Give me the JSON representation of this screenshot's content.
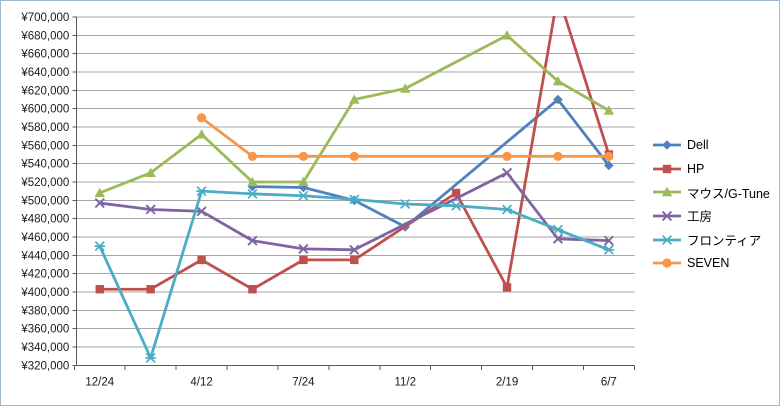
{
  "chart_data": {
    "type": "line",
    "title": "",
    "categories": [
      "12/24",
      "",
      "4/12",
      "",
      "7/24",
      "",
      "11/2",
      "",
      "2/19",
      "",
      "6/7"
    ],
    "x_axis": {
      "tick_labels": [
        "12/24",
        "4/12",
        "7/24",
        "11/2",
        "2/19",
        "6/7"
      ],
      "label_every": 2
    },
    "y_axis": {
      "min": 320000,
      "max": 700000,
      "step": 20000,
      "tick_labels": [
        "¥320,000",
        "¥340,000",
        "¥360,000",
        "¥380,000",
        "¥400,000",
        "¥420,000",
        "¥440,000",
        "¥460,000",
        "¥480,000",
        "¥500,000",
        "¥520,000",
        "¥540,000",
        "¥560,000",
        "¥580,000",
        "¥600,000",
        "¥620,000",
        "¥640,000",
        "¥660,000",
        "¥680,000",
        "¥700,000"
      ]
    },
    "ylim": [
      320000,
      700000
    ],
    "grid": true,
    "legend": {
      "position": "right"
    },
    "series": [
      {
        "name": "Dell",
        "color": "#4F81BD",
        "marker": "diamond",
        "values": [
          null,
          null,
          null,
          515000,
          514000,
          500000,
          471000,
          null,
          null,
          610000,
          538000
        ]
      },
      {
        "name": "HP",
        "color": "#C0504D",
        "marker": "square",
        "values": [
          403000,
          403000,
          435000,
          403000,
          435000,
          435000,
          null,
          508000,
          405000,
          725000,
          550000
        ]
      },
      {
        "name": "マウス/G-Tune",
        "color": "#9BBB59",
        "marker": "triangle",
        "values": [
          508000,
          530000,
          572000,
          520000,
          520000,
          610000,
          622000,
          null,
          680000,
          630000,
          598000
        ]
      },
      {
        "name": "工房",
        "color": "#8064A2",
        "marker": "x",
        "values": [
          497000,
          490000,
          488000,
          456000,
          447000,
          446000,
          null,
          null,
          530000,
          458000,
          456000
        ]
      },
      {
        "name": "フロンティア",
        "color": "#4BACC6",
        "marker": "asterisk",
        "values": [
          450000,
          328000,
          510000,
          507000,
          505000,
          501000,
          496000,
          494000,
          490000,
          468000,
          446000
        ]
      },
      {
        "name": "SEVEN",
        "color": "#F79646",
        "marker": "circle",
        "values": [
          null,
          null,
          590000,
          548000,
          548000,
          548000,
          null,
          null,
          548000,
          548000,
          548000
        ]
      }
    ]
  },
  "colors": {
    "background": "#FFFFFF",
    "plot_border": "#9EB6CE",
    "gridline": "#A6A6A6",
    "axis_line": "#595959",
    "tick_text": "#1A1A1A"
  }
}
